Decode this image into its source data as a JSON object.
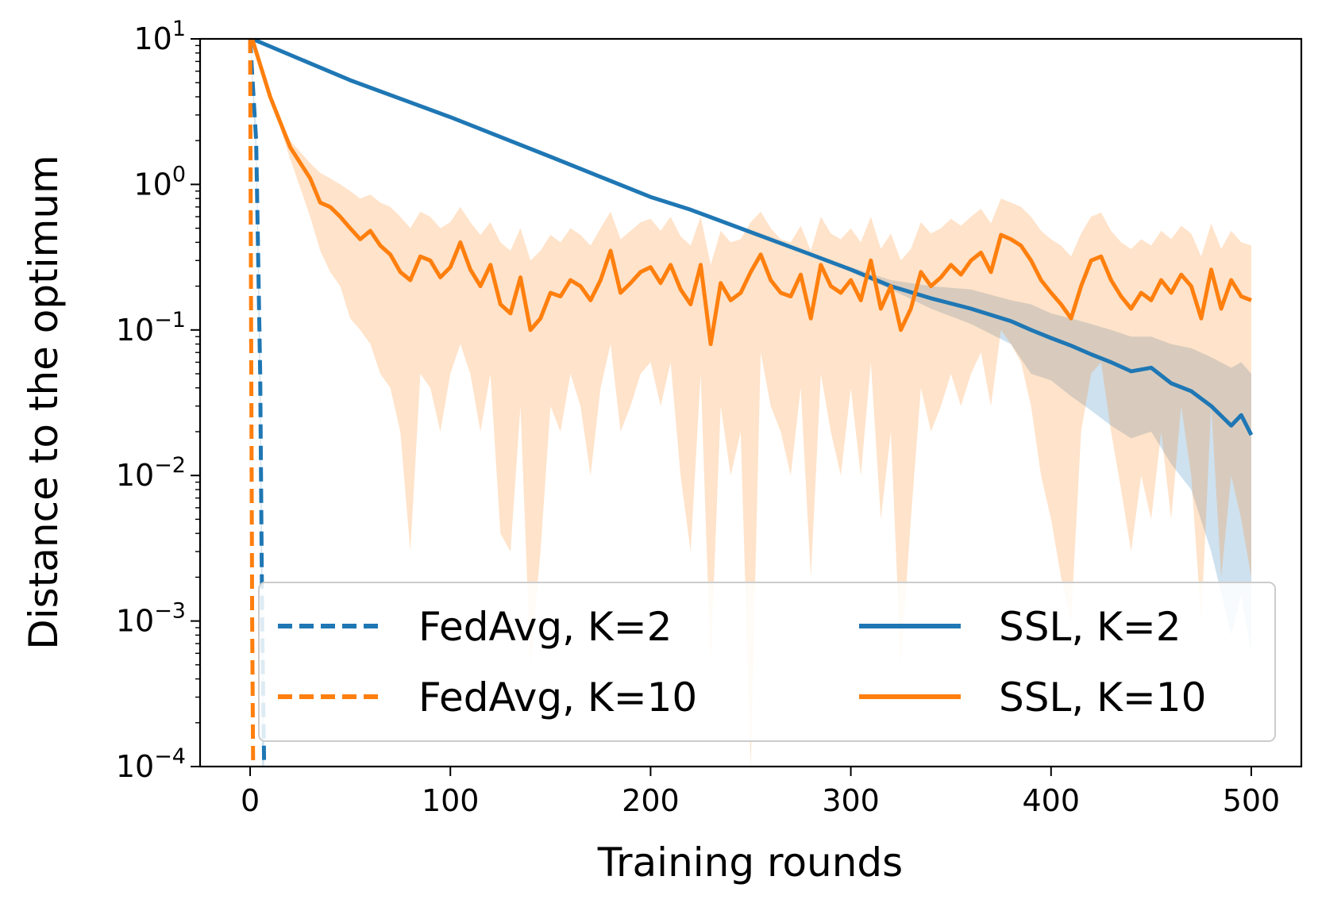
{
  "chart_data": {
    "type": "line",
    "title": "",
    "xlabel": "Training rounds",
    "ylabel": "Distance to the optimum",
    "yscale": "log",
    "xlim": [
      -25,
      525
    ],
    "ylim": [
      0.0001,
      10
    ],
    "x_ticks": [
      0,
      100,
      200,
      300,
      400,
      500
    ],
    "x_tick_labels": [
      "0",
      "100",
      "200",
      "300",
      "400",
      "500"
    ],
    "y_ticks": [
      {
        "value": 0.0001,
        "base": "10",
        "exp": "−4"
      },
      {
        "value": 0.001,
        "base": "10",
        "exp": "−3"
      },
      {
        "value": 0.01,
        "base": "10",
        "exp": "−2"
      },
      {
        "value": 0.1,
        "base": "10",
        "exp": "−1"
      },
      {
        "value": 1,
        "base": "10",
        "exp": "0"
      },
      {
        "value": 10,
        "base": "10",
        "exp": "1"
      }
    ],
    "colors": {
      "blue": "#1f77b4",
      "orange": "#ff7f0e"
    },
    "legend": {
      "position": "lower-right",
      "columns": 2,
      "entries": [
        {
          "label": "FedAvg, K=2",
          "color": "#1f77b4",
          "style": "dashed"
        },
        {
          "label": "SSL, K=2",
          "color": "#1f77b4",
          "style": "solid"
        },
        {
          "label": "FedAvg, K=10",
          "color": "#ff7f0e",
          "style": "dashed"
        },
        {
          "label": "SSL, K=10",
          "color": "#ff7f0e",
          "style": "solid"
        }
      ]
    },
    "series": [
      {
        "name": "FedAvg, K=2",
        "color": "#1f77b4",
        "style": "dashed",
        "x": [
          0,
          3,
          5,
          6,
          7
        ],
        "y": [
          10,
          2,
          0.05,
          0.001,
          0.0001
        ],
        "band_low": [
          10,
          1.5,
          0.02,
          0.0001,
          0.0001
        ],
        "band_high": [
          10,
          2.5,
          0.08,
          0.003,
          0.0003
        ]
      },
      {
        "name": "FedAvg, K=10",
        "color": "#ff7f0e",
        "style": "dashed",
        "x": [
          0,
          0.5,
          1,
          1.5
        ],
        "y": [
          10,
          0.1,
          0.001,
          0.0001
        ]
      },
      {
        "name": "SSL, K=2",
        "color": "#1f77b4",
        "style": "solid",
        "x": [
          1,
          50,
          100,
          150,
          200,
          220,
          250,
          280,
          300,
          320,
          340,
          360,
          380,
          390,
          400,
          410,
          420,
          430,
          440,
          450,
          460,
          470,
          480,
          490,
          495,
          500
        ],
        "y": [
          10,
          5.2,
          2.9,
          1.55,
          0.82,
          0.67,
          0.47,
          0.33,
          0.26,
          0.2,
          0.165,
          0.14,
          0.115,
          0.1,
          0.088,
          0.078,
          0.068,
          0.06,
          0.052,
          0.055,
          0.043,
          0.038,
          0.03,
          0.022,
          0.026,
          0.019
        ],
        "band_low": [
          10,
          5.2,
          2.9,
          1.55,
          0.82,
          0.67,
          0.47,
          0.33,
          0.25,
          0.19,
          0.14,
          0.11,
          0.08,
          0.05,
          0.045,
          0.035,
          0.028,
          0.022,
          0.018,
          0.02,
          0.012,
          0.008,
          0.003,
          0.0008,
          0.0015,
          0.0006
        ],
        "band_high": [
          10,
          5.2,
          2.9,
          1.55,
          0.82,
          0.67,
          0.47,
          0.33,
          0.27,
          0.22,
          0.2,
          0.19,
          0.16,
          0.15,
          0.13,
          0.12,
          0.11,
          0.1,
          0.09,
          0.09,
          0.08,
          0.075,
          0.065,
          0.055,
          0.06,
          0.05
        ]
      },
      {
        "name": "SSL, K=10",
        "color": "#ff7f0e",
        "style": "solid",
        "x": [
          1,
          10,
          20,
          30,
          35,
          40,
          45,
          50,
          55,
          60,
          65,
          70,
          75,
          80,
          85,
          90,
          95,
          100,
          105,
          110,
          115,
          120,
          125,
          130,
          135,
          140,
          145,
          150,
          155,
          160,
          165,
          170,
          175,
          180,
          185,
          190,
          195,
          200,
          205,
          210,
          215,
          220,
          225,
          230,
          235,
          240,
          245,
          250,
          255,
          260,
          265,
          270,
          275,
          280,
          285,
          290,
          295,
          300,
          305,
          310,
          315,
          320,
          325,
          330,
          335,
          340,
          345,
          350,
          355,
          360,
          365,
          370,
          375,
          380,
          385,
          390,
          395,
          400,
          405,
          410,
          415,
          420,
          425,
          430,
          435,
          440,
          445,
          450,
          455,
          460,
          465,
          470,
          475,
          480,
          485,
          490,
          495,
          500
        ],
        "y": [
          10,
          4,
          1.8,
          1.1,
          0.75,
          0.7,
          0.6,
          0.5,
          0.42,
          0.48,
          0.38,
          0.33,
          0.25,
          0.22,
          0.32,
          0.3,
          0.23,
          0.27,
          0.4,
          0.26,
          0.2,
          0.28,
          0.15,
          0.13,
          0.23,
          0.1,
          0.12,
          0.18,
          0.17,
          0.22,
          0.2,
          0.16,
          0.22,
          0.35,
          0.18,
          0.21,
          0.25,
          0.27,
          0.21,
          0.28,
          0.19,
          0.15,
          0.28,
          0.08,
          0.21,
          0.16,
          0.18,
          0.25,
          0.33,
          0.22,
          0.18,
          0.17,
          0.24,
          0.12,
          0.28,
          0.2,
          0.18,
          0.22,
          0.16,
          0.3,
          0.14,
          0.2,
          0.1,
          0.14,
          0.25,
          0.2,
          0.23,
          0.28,
          0.24,
          0.3,
          0.34,
          0.25,
          0.45,
          0.42,
          0.38,
          0.3,
          0.22,
          0.18,
          0.15,
          0.12,
          0.2,
          0.3,
          0.32,
          0.22,
          0.17,
          0.14,
          0.18,
          0.16,
          0.22,
          0.18,
          0.24,
          0.2,
          0.12,
          0.26,
          0.14,
          0.22,
          0.17,
          0.16
        ],
        "band_low": [
          10,
          4,
          1.5,
          0.6,
          0.35,
          0.25,
          0.2,
          0.12,
          0.1,
          0.08,
          0.05,
          0.04,
          0.02,
          0.003,
          0.05,
          0.04,
          0.02,
          0.05,
          0.08,
          0.05,
          0.02,
          0.05,
          0.004,
          0.003,
          0.03,
          0.0005,
          0.003,
          0.03,
          0.02,
          0.05,
          0.03,
          0.01,
          0.04,
          0.08,
          0.02,
          0.03,
          0.05,
          0.06,
          0.03,
          0.06,
          0.01,
          0.003,
          0.05,
          0.0005,
          0.03,
          0.01,
          0.02,
          0.0001,
          0.07,
          0.03,
          0.02,
          0.01,
          0.04,
          0.002,
          0.05,
          0.02,
          0.01,
          0.04,
          0.01,
          0.06,
          0.005,
          0.02,
          0.0005,
          0.005,
          0.04,
          0.02,
          0.03,
          0.05,
          0.03,
          0.05,
          0.07,
          0.03,
          0.1,
          0.08,
          0.06,
          0.03,
          0.01,
          0.005,
          0.002,
          0.001,
          0.02,
          0.05,
          0.06,
          0.02,
          0.008,
          0.003,
          0.01,
          0.005,
          0.02,
          0.005,
          0.03,
          0.01,
          0.001,
          0.03,
          0.002,
          0.01,
          0.005,
          0.002
        ],
        "band_high": [
          10,
          4,
          2,
          1.4,
          1.2,
          1.1,
          1.0,
          0.9,
          0.8,
          0.85,
          0.75,
          0.7,
          0.6,
          0.5,
          0.65,
          0.6,
          0.5,
          0.55,
          0.7,
          0.55,
          0.45,
          0.55,
          0.4,
          0.35,
          0.5,
          0.3,
          0.35,
          0.45,
          0.4,
          0.5,
          0.45,
          0.38,
          0.5,
          0.65,
          0.42,
          0.48,
          0.55,
          0.58,
          0.48,
          0.6,
          0.44,
          0.38,
          0.6,
          0.28,
          0.48,
          0.4,
          0.42,
          0.55,
          0.65,
          0.5,
          0.42,
          0.4,
          0.52,
          0.35,
          0.6,
          0.46,
          0.42,
          0.5,
          0.4,
          0.6,
          0.36,
          0.46,
          0.3,
          0.36,
          0.55,
          0.46,
          0.5,
          0.58,
          0.52,
          0.6,
          0.68,
          0.54,
          0.8,
          0.75,
          0.7,
          0.6,
          0.48,
          0.42,
          0.38,
          0.32,
          0.46,
          0.6,
          0.64,
          0.48,
          0.4,
          0.36,
          0.42,
          0.38,
          0.48,
          0.42,
          0.52,
          0.46,
          0.32,
          0.54,
          0.36,
          0.48,
          0.4,
          0.38
        ]
      }
    ]
  }
}
